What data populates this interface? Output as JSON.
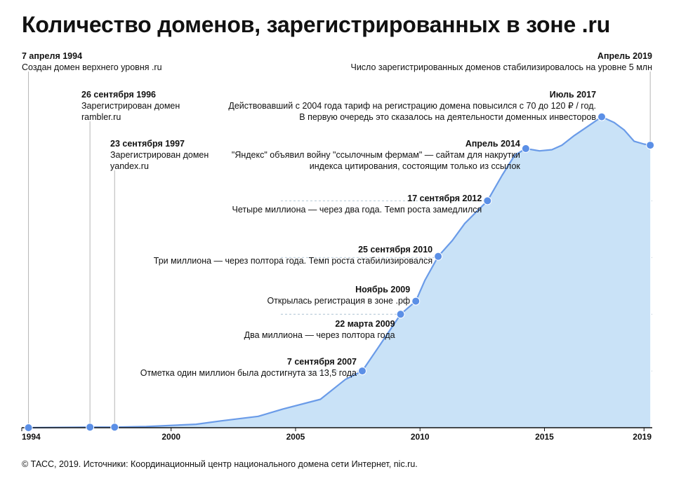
{
  "page": {
    "title": "Количество доменов, зарегистрированных в зоне .ru",
    "footer": "© ТАСС, 2019. Источники: Координационный центр национального домена сети Интернет, nic.ru."
  },
  "colors": {
    "line": "#6a9be8",
    "area": "#c9e2f7",
    "point": "#5b8fe6",
    "grid": "#9fb7c9",
    "axis": "#111111"
  },
  "chart_data": {
    "type": "area",
    "xlim": [
      1994.0,
      2019.33
    ],
    "ylim": [
      0,
      5.5
    ],
    "unit_label": "млн",
    "x_ticks": [
      {
        "value": 1994,
        "label": "1994"
      },
      {
        "value": 2000,
        "label": "2000"
      },
      {
        "value": 2005,
        "label": "2005"
      },
      {
        "value": 2010,
        "label": "2010"
      },
      {
        "value": 2015,
        "label": "2015"
      },
      {
        "value": 2019,
        "label": "2019"
      }
    ],
    "y_ticks": [
      {
        "value": 1,
        "label": "1 млн"
      },
      {
        "value": 2,
        "label": "2"
      },
      {
        "value": 3,
        "label": "3"
      },
      {
        "value": 4,
        "label": "4"
      }
    ],
    "series": [
      {
        "points": [
          [
            1994.27,
            0.0
          ],
          [
            1996.74,
            0.01
          ],
          [
            1997.73,
            0.01
          ],
          [
            1999.0,
            0.02
          ],
          [
            2001.0,
            0.06
          ],
          [
            2002.0,
            0.12
          ],
          [
            2003.5,
            0.2
          ],
          [
            2004.5,
            0.33
          ],
          [
            2006.0,
            0.5
          ],
          [
            2007.0,
            0.85
          ],
          [
            2007.68,
            1.0
          ],
          [
            2008.3,
            1.4
          ],
          [
            2009.22,
            2.0
          ],
          [
            2009.83,
            2.23
          ],
          [
            2010.2,
            2.6
          ],
          [
            2010.73,
            3.02
          ],
          [
            2011.3,
            3.3
          ],
          [
            2011.8,
            3.6
          ],
          [
            2012.71,
            4.0
          ],
          [
            2013.3,
            4.45
          ],
          [
            2013.8,
            4.8
          ],
          [
            2014.25,
            4.92
          ],
          [
            2014.8,
            4.88
          ],
          [
            2015.3,
            4.9
          ],
          [
            2015.7,
            4.98
          ],
          [
            2016.2,
            5.15
          ],
          [
            2016.7,
            5.3
          ],
          [
            2017.3,
            5.48
          ],
          [
            2017.8,
            5.38
          ],
          [
            2018.2,
            5.25
          ],
          [
            2018.6,
            5.05
          ],
          [
            2019.0,
            5.0
          ],
          [
            2019.25,
            4.98
          ]
        ]
      }
    ],
    "events": [
      {
        "x": 1994.27,
        "y": 0.0,
        "date": "7 апреля 1994",
        "lines": [
          "Создан домен верхнего уровня .ru"
        ],
        "label_row": 0,
        "align": "left",
        "leader": true
      },
      {
        "x": 1996.74,
        "y": 0.01,
        "date": "26 сентября 1996",
        "lines": [
          "Зарегистрирован домен",
          "rambler.ru"
        ],
        "label_row": 1,
        "align": "left",
        "leader": true
      },
      {
        "x": 1997.73,
        "y": 0.01,
        "date": "23 сентября 1997",
        "lines": [
          "Зарегистрирован домен",
          "yandex.ru"
        ],
        "label_row": 2,
        "align": "left",
        "leader": true
      },
      {
        "x": 2007.68,
        "y": 1.0,
        "date": "7 сентября 2007",
        "lines": [
          "Отметка один миллион была достигнута за 13,5 года"
        ],
        "label_row": 9,
        "align": "right",
        "leader": false
      },
      {
        "x": 2009.22,
        "y": 2.0,
        "date": "22 марта 2009",
        "lines": [
          "Два миллиона — через полтора года"
        ],
        "label_row": 8,
        "align": "right",
        "leader": false
      },
      {
        "x": 2009.83,
        "y": 2.23,
        "date": "Ноябрь 2009",
        "lines": [
          "Открылась регистрация в зоне .рф"
        ],
        "label_row": 7,
        "align": "right",
        "leader": false
      },
      {
        "x": 2010.73,
        "y": 3.02,
        "date": "25 сентября 2010",
        "lines": [
          "Три миллиона — через полтора года. Темп роста стабилизировался"
        ],
        "label_row": 6,
        "align": "right",
        "leader": false
      },
      {
        "x": 2012.71,
        "y": 4.0,
        "date": "17 сентября 2012",
        "lines": [
          "Четыре миллиона — через два года. Темп роста замедлился"
        ],
        "label_row": 5,
        "align": "right",
        "leader": false
      },
      {
        "x": 2014.25,
        "y": 4.92,
        "date": "Апрель 2014",
        "lines": [
          "\"Яндекс\" объявил войну \"ссылочным фермам\" — сайтам для накрутки",
          "индекса цитирования, состоящим только из ссылок"
        ],
        "label_row": 4,
        "align": "right",
        "leader": false
      },
      {
        "x": 2017.3,
        "y": 5.48,
        "date": "Июль 2017",
        "lines": [
          "Действовавший с 2004 года тариф на регистрацию домена повысился с 70 до 120 ₽ / год.",
          "В первую очередь это сказалось на деятельности доменных инвесторов"
        ],
        "label_row": 3,
        "align": "right",
        "leader": false
      },
      {
        "x": 2019.25,
        "y": 4.98,
        "date": "Апрель 2019",
        "lines": [
          "Число зарегистрированных доменов стабилизировалось на уровне 5 млн"
        ],
        "label_row": 0,
        "align": "right",
        "leader": true
      }
    ]
  }
}
